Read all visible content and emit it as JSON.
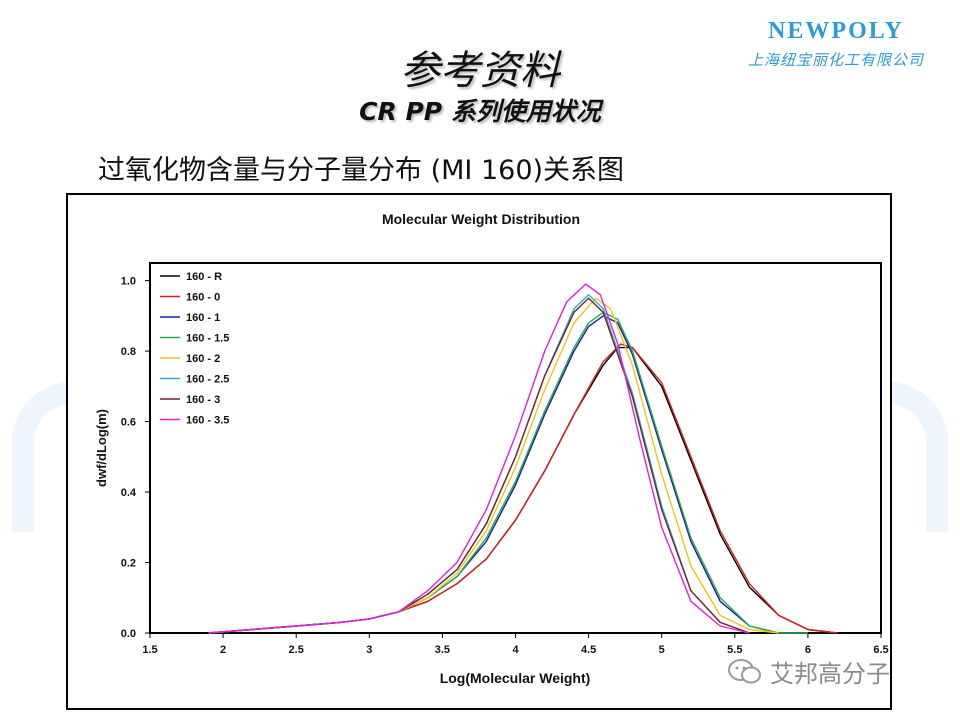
{
  "logo": {
    "brand": "NEWPOLY",
    "company": "上海纽宝丽化工有限公司"
  },
  "slide": {
    "title": "参考资料",
    "subtitle": "CR PP 系列使用状况",
    "heading": "过氧化物含量与分子量分布 (MI 160)关系图"
  },
  "watermark": {
    "text": "艾邦高分子",
    "icon": "wechat-icon"
  },
  "chart_data": {
    "type": "line",
    "title": "Molecular Weight Distribution",
    "xlabel": "Log(Molecular Weight)",
    "ylabel": "dwf/dLog(m)",
    "xlim": [
      1.5,
      6.5
    ],
    "ylim": [
      0.0,
      1.05
    ],
    "xticks": [
      1.5,
      2,
      2.5,
      3,
      3.5,
      4,
      4.5,
      5,
      5.5,
      6,
      6.5
    ],
    "xtick_labels": [
      "1.5",
      "2",
      "2.5",
      "3",
      "3.5",
      "4",
      "4.5",
      "5",
      "5.5",
      "6",
      "6.5"
    ],
    "yticks": [
      0.0,
      0.2,
      0.4,
      0.6,
      0.8,
      1.0
    ],
    "ytick_labels": [
      "0.0",
      "0.2",
      "0.4",
      "0.6",
      "0.8",
      "1.0"
    ],
    "legend_position": "top-left",
    "grid": false,
    "series": [
      {
        "name": "160 - R",
        "color": "#000000",
        "x": [
          1.9,
          2.2,
          2.5,
          2.8,
          3.0,
          3.2,
          3.4,
          3.6,
          3.8,
          4.0,
          4.2,
          4.4,
          4.6,
          4.7,
          4.8,
          5.0,
          5.2,
          5.4,
          5.6,
          5.8,
          6.0,
          6.2
        ],
        "y": [
          0.0,
          0.01,
          0.02,
          0.03,
          0.04,
          0.06,
          0.09,
          0.14,
          0.21,
          0.32,
          0.46,
          0.62,
          0.76,
          0.81,
          0.81,
          0.7,
          0.49,
          0.28,
          0.13,
          0.05,
          0.01,
          0.0
        ]
      },
      {
        "name": "160 - 0",
        "color": "#d62020",
        "x": [
          1.9,
          2.2,
          2.5,
          2.8,
          3.0,
          3.2,
          3.4,
          3.6,
          3.8,
          4.0,
          4.2,
          4.4,
          4.6,
          4.72,
          4.8,
          5.0,
          5.2,
          5.4,
          5.6,
          5.8,
          6.0,
          6.2
        ],
        "y": [
          0.0,
          0.01,
          0.02,
          0.03,
          0.04,
          0.06,
          0.09,
          0.14,
          0.21,
          0.32,
          0.46,
          0.62,
          0.77,
          0.82,
          0.81,
          0.71,
          0.5,
          0.29,
          0.14,
          0.05,
          0.01,
          0.0
        ]
      },
      {
        "name": "160 - 1",
        "color": "#1a1aa8",
        "x": [
          1.9,
          2.2,
          2.5,
          2.8,
          3.0,
          3.2,
          3.4,
          3.6,
          3.8,
          4.0,
          4.2,
          4.4,
          4.5,
          4.6,
          4.7,
          4.8,
          5.0,
          5.2,
          5.4,
          5.6,
          5.8,
          6.0
        ],
        "y": [
          0.0,
          0.01,
          0.02,
          0.03,
          0.04,
          0.06,
          0.1,
          0.16,
          0.26,
          0.42,
          0.62,
          0.8,
          0.87,
          0.9,
          0.88,
          0.79,
          0.52,
          0.26,
          0.09,
          0.02,
          0.0,
          0.0
        ]
      },
      {
        "name": "160 - 1.5",
        "color": "#22b04a",
        "x": [
          1.9,
          2.2,
          2.5,
          2.8,
          3.0,
          3.2,
          3.4,
          3.6,
          3.8,
          4.0,
          4.2,
          4.4,
          4.5,
          4.6,
          4.7,
          4.8,
          5.0,
          5.2,
          5.4,
          5.6,
          5.8,
          6.0
        ],
        "y": [
          0.0,
          0.01,
          0.02,
          0.03,
          0.04,
          0.06,
          0.1,
          0.16,
          0.27,
          0.43,
          0.63,
          0.81,
          0.88,
          0.91,
          0.89,
          0.8,
          0.53,
          0.27,
          0.1,
          0.02,
          0.0,
          0.0
        ]
      },
      {
        "name": "160 - 2",
        "color": "#f2c417",
        "x": [
          1.9,
          2.2,
          2.5,
          2.8,
          3.0,
          3.2,
          3.4,
          3.6,
          3.8,
          4.0,
          4.2,
          4.4,
          4.55,
          4.65,
          4.8,
          5.0,
          5.2,
          5.4,
          5.6,
          5.8
        ],
        "y": [
          0.0,
          0.01,
          0.02,
          0.03,
          0.04,
          0.06,
          0.1,
          0.17,
          0.29,
          0.47,
          0.69,
          0.88,
          0.95,
          0.92,
          0.76,
          0.45,
          0.19,
          0.05,
          0.01,
          0.0
        ]
      },
      {
        "name": "160 - 2.5",
        "color": "#1fb6c8",
        "x": [
          1.9,
          2.2,
          2.5,
          2.8,
          3.0,
          3.2,
          3.4,
          3.6,
          3.8,
          4.0,
          4.2,
          4.4,
          4.5,
          4.6,
          4.8,
          5.0,
          5.2,
          5.4,
          5.6
        ],
        "y": [
          0.0,
          0.01,
          0.02,
          0.03,
          0.04,
          0.06,
          0.11,
          0.18,
          0.31,
          0.5,
          0.73,
          0.92,
          0.96,
          0.92,
          0.68,
          0.36,
          0.12,
          0.03,
          0.0
        ]
      },
      {
        "name": "160 - 3",
        "color": "#7a1f2b",
        "x": [
          1.9,
          2.2,
          2.5,
          2.8,
          3.0,
          3.2,
          3.4,
          3.6,
          3.8,
          4.0,
          4.2,
          4.4,
          4.5,
          4.6,
          4.8,
          5.0,
          5.2,
          5.4,
          5.6
        ],
        "y": [
          0.0,
          0.01,
          0.02,
          0.03,
          0.04,
          0.06,
          0.11,
          0.18,
          0.31,
          0.5,
          0.73,
          0.91,
          0.95,
          0.91,
          0.67,
          0.35,
          0.12,
          0.03,
          0.0
        ]
      },
      {
        "name": "160 - 3.5",
        "color": "#e020e0",
        "x": [
          1.9,
          2.2,
          2.5,
          2.8,
          3.0,
          3.2,
          3.4,
          3.6,
          3.8,
          4.0,
          4.2,
          4.35,
          4.48,
          4.58,
          4.7,
          4.85,
          5.0,
          5.2,
          5.4,
          5.6
        ],
        "y": [
          0.0,
          0.01,
          0.02,
          0.03,
          0.04,
          0.06,
          0.12,
          0.2,
          0.35,
          0.56,
          0.8,
          0.94,
          0.99,
          0.96,
          0.82,
          0.55,
          0.3,
          0.09,
          0.02,
          0.0
        ]
      }
    ]
  }
}
